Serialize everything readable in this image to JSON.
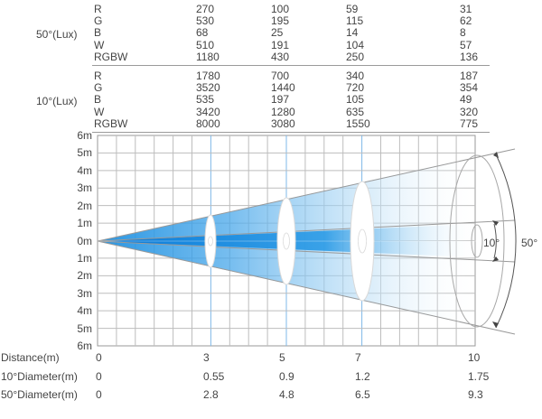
{
  "lux_table": {
    "sections": [
      {
        "label": "50°(Lux)",
        "rows": [
          {
            "channel": "R",
            "values": [
              "270",
              "100",
              "59",
              "31"
            ]
          },
          {
            "channel": "G",
            "values": [
              "530",
              "195",
              "115",
              "62"
            ]
          },
          {
            "channel": "B",
            "values": [
              "68",
              "25",
              "14",
              "8"
            ]
          },
          {
            "channel": "W",
            "values": [
              "510",
              "191",
              "104",
              "57"
            ]
          },
          {
            "channel": "RGBW",
            "values": [
              "1180",
              "430",
              "250",
              "136"
            ]
          }
        ]
      },
      {
        "label": "10°(Lux)",
        "rows": [
          {
            "channel": "R",
            "values": [
              "1780",
              "700",
              "340",
              "187"
            ]
          },
          {
            "channel": "G",
            "values": [
              "3520",
              "1440",
              "720",
              "354"
            ]
          },
          {
            "channel": "B",
            "values": [
              "535",
              "197",
              "105",
              "49"
            ]
          },
          {
            "channel": "W",
            "values": [
              "3420",
              "1280",
              "635",
              "320"
            ]
          },
          {
            "channel": "RGBW",
            "values": [
              "8000",
              "3080",
              "1550",
              "775"
            ]
          }
        ]
      }
    ]
  },
  "grid": {
    "y_labels": [
      "6m",
      "5m",
      "4m",
      "3m",
      "2m",
      "1m",
      "0m",
      "1m",
      "2m",
      "3m",
      "4m",
      "5m",
      "6m"
    ]
  },
  "beam": {
    "narrow_label": "10°",
    "wide_label": "50°",
    "colors": {
      "beam_blue": "#1c8fe0",
      "light_blue": "#c9e6f8",
      "line": "#999999"
    }
  },
  "bottom_table": {
    "rows": [
      {
        "label": "Distance(m)",
        "values": [
          "0",
          "3",
          "5",
          "7",
          "10"
        ]
      },
      {
        "label": "10°Diameter(m)",
        "values": [
          "0",
          "0.55",
          "0.9",
          "1.2",
          "1.75"
        ]
      },
      {
        "label": "50°Diameter(m)",
        "values": [
          "0",
          "2.8",
          "4.8",
          "6.5",
          "9.3"
        ]
      }
    ]
  }
}
